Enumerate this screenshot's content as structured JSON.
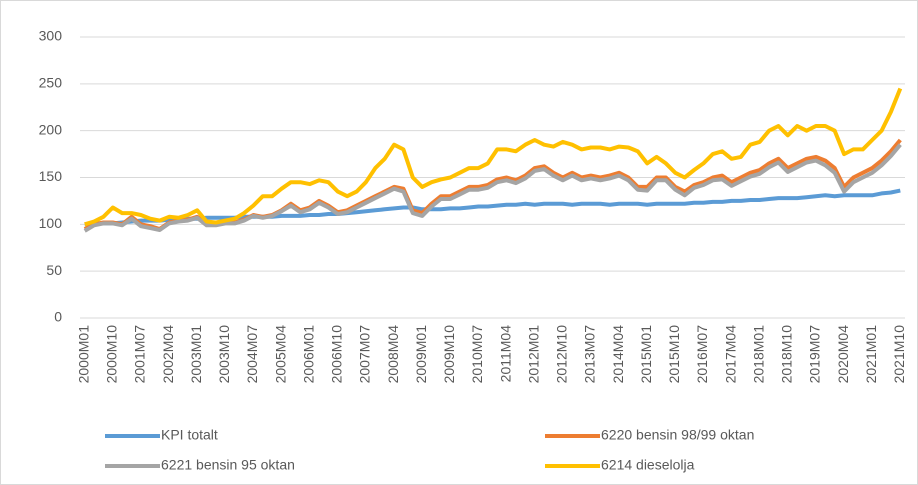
{
  "chart_data": {
    "type": "line",
    "categories": [
      "2000M01",
      null,
      null,
      "2000M10",
      null,
      null,
      "2001M07",
      null,
      null,
      "2002M04",
      null,
      null,
      "2003M01",
      null,
      null,
      "2003M10",
      null,
      null,
      "2004M07",
      null,
      null,
      "2005M04",
      null,
      null,
      "2006M01",
      null,
      null,
      "2006M10",
      null,
      null,
      "2007M07",
      null,
      null,
      "2008M04",
      null,
      null,
      "2009M01",
      null,
      null,
      "2009M10",
      null,
      null,
      "2010M07",
      null,
      null,
      "2011M04",
      null,
      null,
      "2012M01",
      null,
      null,
      "2012M10",
      null,
      null,
      "2013M07",
      null,
      null,
      "2014M04",
      null,
      null,
      "2015M01",
      null,
      null,
      "2015M10",
      null,
      null,
      "2016M07",
      null,
      null,
      "2017M04",
      null,
      null,
      "2018M01",
      null,
      null,
      "2018M10",
      null,
      null,
      "2019M07",
      null,
      null,
      "2020M04",
      null,
      null,
      "2021M01",
      null,
      null,
      "2021M10"
    ],
    "series": [
      {
        "name": "KPI totalt",
        "color": "#5b9bd5",
        "values": [
          100,
          101,
          101,
          101,
          102,
          103,
          104,
          104,
          104,
          105,
          105,
          106,
          106,
          107,
          107,
          107,
          107,
          108,
          108,
          108,
          108,
          109,
          109,
          109,
          110,
          110,
          111,
          111,
          112,
          113,
          114,
          115,
          116,
          117,
          118,
          118,
          116,
          116,
          116,
          117,
          117,
          118,
          119,
          119,
          120,
          121,
          121,
          122,
          121,
          122,
          122,
          122,
          121,
          122,
          122,
          122,
          121,
          122,
          122,
          122,
          121,
          122,
          122,
          122,
          122,
          123,
          123,
          124,
          124,
          125,
          125,
          126,
          126,
          127,
          128,
          128,
          128,
          129,
          130,
          131,
          130,
          131,
          131,
          131,
          131,
          133,
          134,
          136
        ]
      },
      {
        "name": "6220 bensin 98/99 oktan",
        "color": "#ed7d31",
        "values": [
          95,
          100,
          102,
          102,
          100,
          108,
          100,
          98,
          95,
          102,
          104,
          105,
          108,
          100,
          100,
          102,
          102,
          105,
          110,
          108,
          110,
          115,
          122,
          115,
          118,
          125,
          120,
          113,
          115,
          120,
          125,
          130,
          135,
          140,
          138,
          115,
          112,
          122,
          130,
          130,
          135,
          140,
          140,
          142,
          148,
          150,
          147,
          152,
          160,
          162,
          155,
          150,
          155,
          150,
          152,
          150,
          152,
          155,
          150,
          140,
          140,
          150,
          150,
          140,
          135,
          142,
          145,
          150,
          152,
          145,
          150,
          155,
          158,
          165,
          170,
          160,
          165,
          170,
          172,
          168,
          160,
          140,
          150,
          155,
          160,
          168,
          178,
          190
        ]
      },
      {
        "name": "6221 bensin 95 oktan",
        "color": "#a5a5a5",
        "values": [
          93,
          99,
          101,
          101,
          99,
          106,
          98,
          96,
          94,
          101,
          103,
          104,
          107,
          99,
          99,
          101,
          101,
          104,
          109,
          107,
          109,
          114,
          120,
          113,
          116,
          123,
          118,
          111,
          113,
          118,
          123,
          128,
          133,
          138,
          135,
          112,
          109,
          119,
          127,
          127,
          132,
          137,
          137,
          139,
          145,
          147,
          144,
          149,
          157,
          159,
          152,
          147,
          152,
          147,
          149,
          147,
          149,
          152,
          147,
          137,
          136,
          147,
          147,
          137,
          131,
          139,
          142,
          147,
          148,
          141,
          146,
          151,
          154,
          161,
          166,
          156,
          161,
          166,
          168,
          163,
          155,
          135,
          145,
          150,
          155,
          163,
          173,
          185
        ]
      },
      {
        "name": "6214 dieselolja",
        "color": "#ffc000",
        "values": [
          100,
          103,
          108,
          118,
          112,
          112,
          110,
          106,
          104,
          108,
          107,
          110,
          115,
          103,
          102,
          104,
          106,
          112,
          120,
          130,
          130,
          138,
          145,
          145,
          143,
          147,
          145,
          135,
          130,
          135,
          145,
          160,
          170,
          185,
          180,
          150,
          140,
          145,
          148,
          150,
          155,
          160,
          160,
          165,
          180,
          180,
          178,
          185,
          190,
          185,
          183,
          188,
          185,
          180,
          182,
          182,
          180,
          183,
          182,
          178,
          165,
          172,
          165,
          155,
          150,
          158,
          165,
          175,
          178,
          170,
          172,
          185,
          188,
          200,
          205,
          195,
          205,
          200,
          205,
          205,
          200,
          175,
          180,
          180,
          190,
          200,
          220,
          245
        ]
      }
    ],
    "ylim": [
      0,
      300
    ],
    "yticks": [
      0,
      50,
      100,
      150,
      200,
      250,
      300
    ],
    "grid": true,
    "legend": "bottom"
  }
}
